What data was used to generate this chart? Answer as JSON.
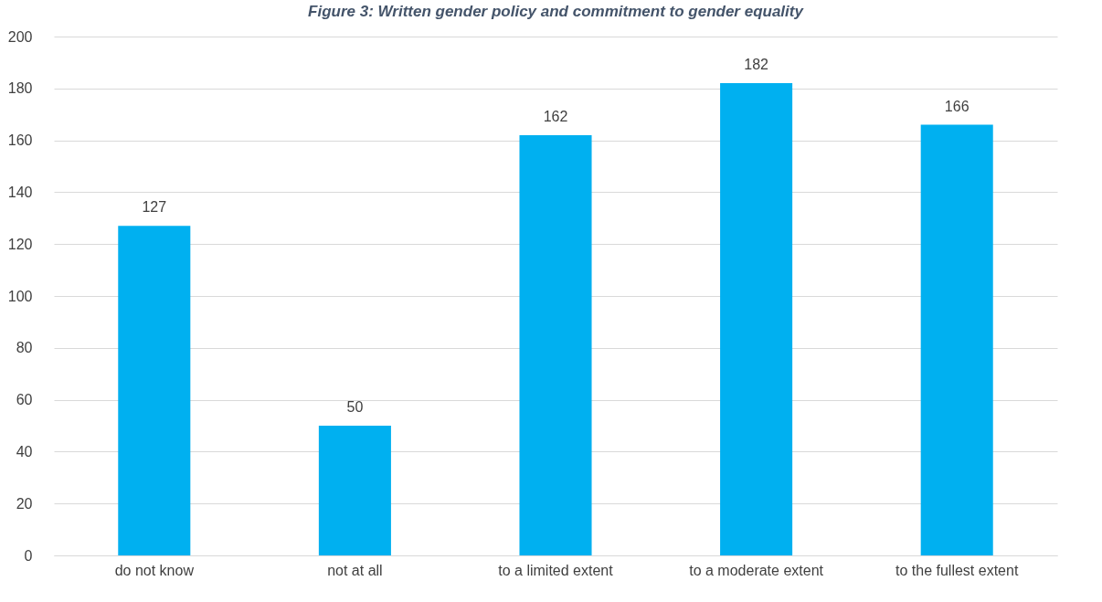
{
  "chart_data": {
    "type": "bar",
    "title": "Figure 3: Written gender policy and commitment to gender equality",
    "categories": [
      "do not know",
      "not at all",
      "to a limited extent",
      "to a moderate extent",
      "to the fullest extent"
    ],
    "values": [
      127,
      50,
      162,
      182,
      166
    ],
    "color": "#00b0f0",
    "data_labels": true,
    "ylim": [
      0,
      200
    ],
    "yticks": [
      0,
      20,
      40,
      60,
      80,
      100,
      120,
      140,
      160,
      180,
      200
    ],
    "grid": "y"
  }
}
